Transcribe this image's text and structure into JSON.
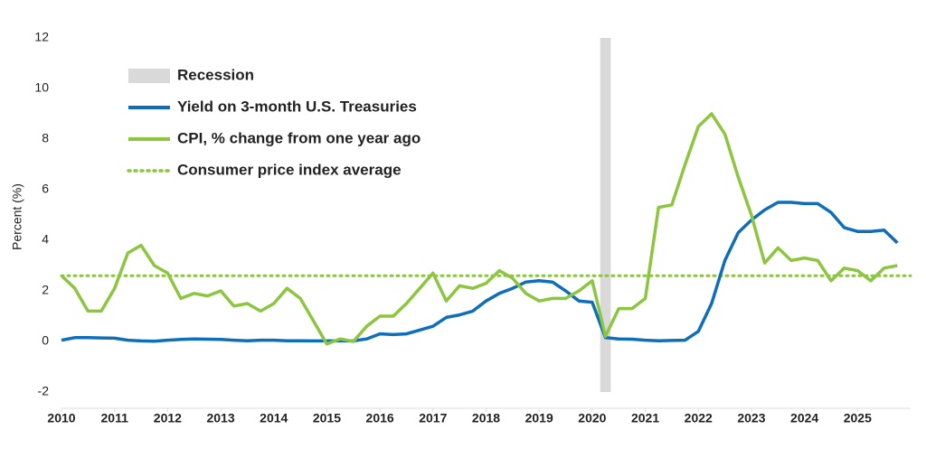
{
  "chart_data": {
    "type": "line",
    "y_label": "Percent (%)",
    "xlim": [
      2010,
      2026
    ],
    "xticks": [
      2010,
      2011,
      2012,
      2013,
      2014,
      2015,
      2016,
      2017,
      2018,
      2019,
      2020,
      2021,
      2022,
      2023,
      2024,
      2025
    ],
    "ylim": [
      -2,
      12
    ],
    "yticks": [
      -2,
      0,
      2,
      4,
      6,
      8,
      10,
      12
    ],
    "recession": {
      "name": "Recession",
      "range": [
        2020.15,
        2020.35
      ],
      "color": "#d9d9d9"
    },
    "average": {
      "name": "Consumer price index average",
      "value": 2.6,
      "color": "#8cc63f"
    },
    "x": [
      2010,
      2010.25,
      2010.5,
      2010.75,
      2011,
      2011.25,
      2011.5,
      2011.75,
      2012,
      2012.25,
      2012.5,
      2012.75,
      2013,
      2013.25,
      2013.5,
      2013.75,
      2014,
      2014.25,
      2014.5,
      2014.75,
      2015,
      2015.25,
      2015.5,
      2015.75,
      2016,
      2016.25,
      2016.5,
      2016.75,
      2017,
      2017.25,
      2017.5,
      2017.75,
      2018,
      2018.25,
      2018.5,
      2018.75,
      2019,
      2019.25,
      2019.5,
      2019.75,
      2020,
      2020.25,
      2020.5,
      2020.75,
      2021,
      2021.25,
      2021.5,
      2021.75,
      2022,
      2022.25,
      2022.5,
      2022.75,
      2023,
      2023.25,
      2023.5,
      2023.75,
      2024,
      2024.25,
      2024.5,
      2024.75,
      2025,
      2025.25,
      2025.5,
      2025.75
    ],
    "series": [
      {
        "name": "Yield on 3-month U.S. Treasuries",
        "color": "#0f6eb8",
        "values": [
          0.05,
          0.15,
          0.15,
          0.14,
          0.13,
          0.05,
          0.02,
          0.01,
          0.05,
          0.08,
          0.1,
          0.09,
          0.08,
          0.05,
          0.03,
          0.05,
          0.05,
          0.03,
          0.03,
          0.02,
          0.02,
          0.02,
          0.02,
          0.1,
          0.3,
          0.27,
          0.3,
          0.45,
          0.6,
          0.95,
          1.05,
          1.2,
          1.6,
          1.9,
          2.1,
          2.35,
          2.4,
          2.35,
          2.0,
          1.6,
          1.55,
          0.15,
          0.1,
          0.09,
          0.05,
          0.03,
          0.04,
          0.05,
          0.4,
          1.5,
          3.2,
          4.3,
          4.8,
          5.2,
          5.5,
          5.5,
          5.45,
          5.45,
          5.1,
          4.5,
          4.35,
          4.35,
          4.4,
          3.9
        ]
      },
      {
        "name": "CPI, % change from one year ago",
        "color": "#8cc63f",
        "values": [
          2.6,
          2.1,
          1.2,
          1.2,
          2.1,
          3.5,
          3.8,
          3.0,
          2.7,
          1.7,
          1.9,
          1.8,
          2.0,
          1.4,
          1.5,
          1.2,
          1.5,
          2.1,
          1.7,
          0.8,
          -0.1,
          0.1,
          0.0,
          0.6,
          1.0,
          1.0,
          1.5,
          2.1,
          2.7,
          1.6,
          2.2,
          2.1,
          2.3,
          2.8,
          2.5,
          1.9,
          1.6,
          1.7,
          1.7,
          2.0,
          2.4,
          0.2,
          1.3,
          1.3,
          1.7,
          5.3,
          5.4,
          7.0,
          8.5,
          9.0,
          8.2,
          6.5,
          5.0,
          3.1,
          3.7,
          3.2,
          3.3,
          3.2,
          2.4,
          2.9,
          2.8,
          2.4,
          2.9,
          3.0
        ]
      }
    ]
  }
}
